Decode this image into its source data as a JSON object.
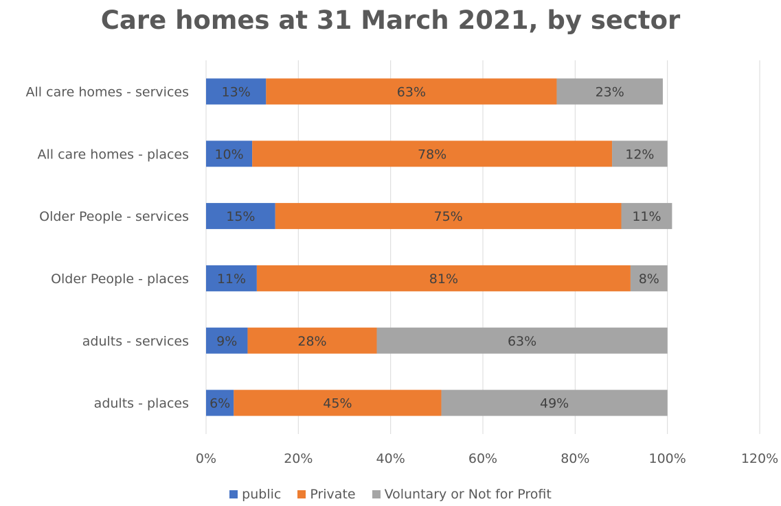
{
  "chart_data": {
    "type": "bar",
    "orientation": "horizontal",
    "stacked": true,
    "title": "Care homes at 31 March 2021, by sector",
    "categories": [
      "All care homes  - services",
      "All care homes  - places",
      "Older People - services",
      "Older People - places",
      "adults - services",
      "adults - places"
    ],
    "series": [
      {
        "name": "public",
        "color": "#4472C4",
        "values": [
          13,
          10,
          15,
          11,
          9,
          6
        ],
        "labels": [
          "13%",
          "10%",
          "15%",
          "11%",
          "9%",
          "6%"
        ]
      },
      {
        "name": "Private",
        "color": "#ED7D31",
        "values": [
          63,
          78,
          75,
          81,
          28,
          45
        ],
        "labels": [
          "63%",
          "78%",
          "75%",
          "81%",
          "28%",
          "45%"
        ]
      },
      {
        "name": "Voluntary or Not for Profit",
        "color": "#A5A5A5",
        "values": [
          23,
          12,
          11,
          8,
          63,
          49
        ],
        "labels": [
          "23%",
          "12%",
          "11%",
          "8%",
          "63%",
          "49%"
        ]
      }
    ],
    "xlim": [
      0,
      120
    ],
    "xticks": [
      0,
      20,
      40,
      60,
      80,
      100,
      120
    ],
    "xtick_labels": [
      "0%",
      "20%",
      "40%",
      "60%",
      "80%",
      "100%",
      "120%"
    ],
    "xlabel": "",
    "ylabel": "",
    "grid": true,
    "legend_position": "bottom"
  }
}
